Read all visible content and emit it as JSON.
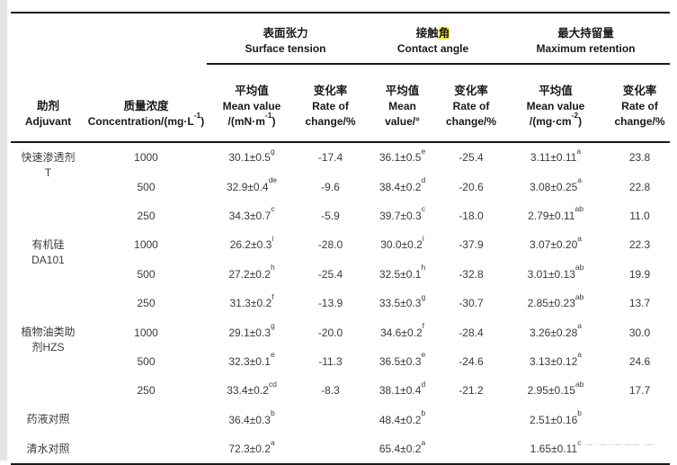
{
  "highlight_color": "#ffef35",
  "artifacts": {
    "bottom_right_marks": "—··—··—·—— ·—"
  },
  "table": {
    "groups": [
      {
        "zh_pre": "表面张力",
        "zh_hl": "",
        "en": "Surface tension"
      },
      {
        "zh_pre": "接触",
        "zh_hl": "角",
        "en": "Contact angle"
      },
      {
        "zh_pre": "最大持留量",
        "zh_hl": "",
        "en": "Maximum retention"
      }
    ],
    "columns": {
      "adjuvant": {
        "zh": "助剂",
        "en": "Adjuvant"
      },
      "concentration": {
        "zh": "质量浓度",
        "en_main": "Concentration/(mg·L",
        "en_sup": "-1",
        "en_close": ")"
      },
      "st_mean": {
        "l1": "平均值",
        "l2": "Mean value",
        "l3_main": "/(mN·m",
        "l3_sup": "-1",
        "l3_close": ")"
      },
      "st_rate": {
        "l1": "变化率",
        "l2": "Rate of",
        "l3_main": "change/%",
        "l3_sup": "",
        "l3_close": ""
      },
      "ca_mean": {
        "l1": "平均值",
        "l2": "Mean",
        "l3_main": "value/°",
        "l3_sup": "",
        "l3_close": ""
      },
      "ca_rate": {
        "l1": "变化率",
        "l2": "Rate of",
        "l3_main": "change/%",
        "l3_sup": "",
        "l3_close": ""
      },
      "mr_mean": {
        "l1": "平均值",
        "l2": "Mean value",
        "l3_main": "/(mg·cm",
        "l3_sup": "-2",
        "l3_close": ")"
      },
      "mr_rate": {
        "l1": "变化率",
        "l2": "Rate of",
        "l3_main": "change/%",
        "l3_sup": "",
        "l3_close": ""
      }
    },
    "rows": [
      {
        "adjuvant": [
          "快速渗透剂",
          "T"
        ],
        "span": 3,
        "conc": "1000",
        "st_mean": "30.1±0.5",
        "st_sup": "g",
        "st_rate": "-17.4",
        "ca_mean": "36.1±0.5",
        "ca_sup": "e",
        "ca_rate": "-25.4",
        "mr_mean": "3.11±0.11",
        "mr_sup": "a",
        "mr_rate": "23.8"
      },
      {
        "conc": "500",
        "st_mean": "32.9±0.4",
        "st_sup": "de",
        "st_rate": "-9.6",
        "ca_mean": "38.4±0.2",
        "ca_sup": "d",
        "ca_rate": "-20.6",
        "mr_mean": "3.08±0.25",
        "mr_sup": "a",
        "mr_rate": "22.8"
      },
      {
        "conc": "250",
        "st_mean": "34.3±0.7",
        "st_sup": "c",
        "st_rate": "-5.9",
        "ca_mean": "39.7±0.3",
        "ca_sup": "c",
        "ca_rate": "-18.0",
        "mr_mean": "2.79±0.11",
        "mr_sup": "ab",
        "mr_rate": "11.0"
      },
      {
        "adjuvant": [
          "有机硅",
          "DA101"
        ],
        "span": 3,
        "conc": "1000",
        "st_mean": "26.2±0.3",
        "st_sup": "i",
        "st_rate": "-28.0",
        "ca_mean": "30.0±0.2",
        "ca_sup": "i",
        "ca_rate": "-37.9",
        "mr_mean": "3.07±0.20",
        "mr_sup": "a",
        "mr_rate": "22.3"
      },
      {
        "conc": "500",
        "st_mean": "27.2±0.2",
        "st_sup": "h",
        "st_rate": "-25.4",
        "ca_mean": "32.5±0.1",
        "ca_sup": "h",
        "ca_rate": "-32.8",
        "mr_mean": "3.01±0.13",
        "mr_sup": "ab",
        "mr_rate": "19.9"
      },
      {
        "conc": "250",
        "st_mean": "31.3±0.2",
        "st_sup": "f",
        "st_rate": "-13.9",
        "ca_mean": "33.5±0.3",
        "ca_sup": "g",
        "ca_rate": "-30.7",
        "mr_mean": "2.85±0.23",
        "mr_sup": "ab",
        "mr_rate": "13.7"
      },
      {
        "adjuvant": [
          "植物油类助",
          "剂HZS"
        ],
        "span": 3,
        "conc": "1000",
        "st_mean": "29.1±0.3",
        "st_sup": "g",
        "st_rate": "-20.0",
        "ca_mean": "34.6±0.2",
        "ca_sup": "f",
        "ca_rate": "-28.4",
        "mr_mean": "3.26±0.28",
        "mr_sup": "a",
        "mr_rate": "30.0"
      },
      {
        "conc": "500",
        "st_mean": "32.3±0.1",
        "st_sup": "e",
        "st_rate": "-11.3",
        "ca_mean": "36.5±0.3",
        "ca_sup": "e",
        "ca_rate": "-24.6",
        "mr_mean": "3.13±0.12",
        "mr_sup": "a",
        "mr_rate": "24.6"
      },
      {
        "conc": "250",
        "st_mean": "33.4±0.2",
        "st_sup": "cd",
        "st_rate": "-8.3",
        "ca_mean": "38.1±0.4",
        "ca_sup": "d",
        "ca_rate": "-21.2",
        "mr_mean": "2.95±0.15",
        "mr_sup": "ab",
        "mr_rate": "17.7"
      },
      {
        "adjuvant": [
          "药液对照"
        ],
        "span": 1,
        "conc": "",
        "st_mean": "36.4±0.3",
        "st_sup": "b",
        "st_rate": "",
        "ca_mean": "48.4±0.2",
        "ca_sup": "b",
        "ca_rate": "",
        "mr_mean": "2.51±0.16",
        "mr_sup": "b",
        "mr_rate": ""
      },
      {
        "adjuvant": [
          "清水对照"
        ],
        "span": 1,
        "conc": "",
        "st_mean": "72.3±0.2",
        "st_sup": "a",
        "st_rate": "",
        "ca_mean": "65.4±0.2",
        "ca_sup": "a",
        "ca_rate": "",
        "mr_mean": "1.65±0.11",
        "mr_sup": "c",
        "mr_rate": ""
      }
    ]
  }
}
